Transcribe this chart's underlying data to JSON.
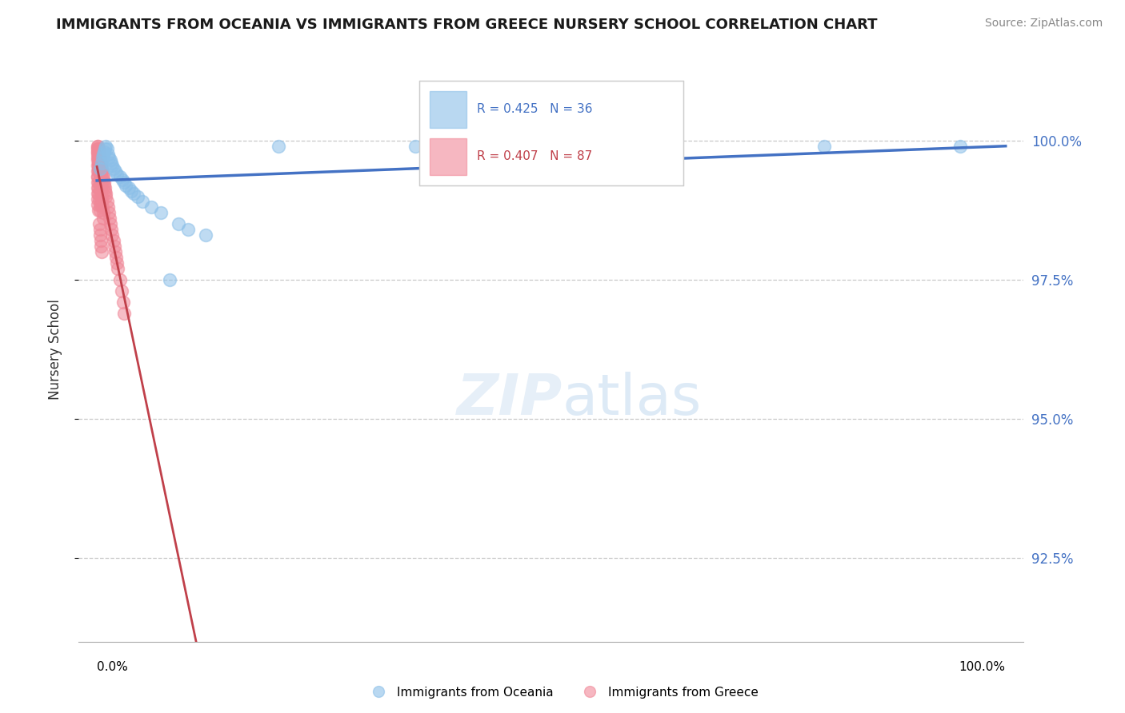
{
  "title": "IMMIGRANTS FROM OCEANIA VS IMMIGRANTS FROM GREECE NURSERY SCHOOL CORRELATION CHART",
  "source": "Source: ZipAtlas.com",
  "ylabel": "Nursery School",
  "y_ticks": [
    92.5,
    95.0,
    97.5,
    100.0
  ],
  "y_tick_labels": [
    "92.5%",
    "95.0%",
    "97.5%",
    "100.0%"
  ],
  "ylim": [
    91.0,
    101.5
  ],
  "xlim": [
    -2,
    102
  ],
  "x_tick_positions": [
    0,
    100
  ],
  "x_tick_labels": [
    "0.0%",
    "100.0%"
  ],
  "legend_r_oceania": "R = 0.425",
  "legend_n_oceania": "N = 36",
  "legend_r_greece": "R = 0.407",
  "legend_n_greece": "N = 87",
  "color_oceania": "#8BBFE8",
  "color_greece": "#F08898",
  "color_trendline_oceania": "#4472C4",
  "color_trendline_greece": "#C0404A",
  "oceania_x": [
    0.3,
    0.5,
    0.6,
    0.7,
    0.8,
    0.9,
    1.0,
    1.1,
    1.2,
    1.3,
    1.5,
    1.6,
    1.7,
    1.8,
    2.0,
    2.2,
    2.5,
    2.8,
    3.0,
    3.2,
    3.5,
    3.8,
    4.0,
    4.5,
    5.0,
    6.0,
    7.0,
    8.0,
    9.0,
    10.0,
    12.0,
    20.0,
    35.0,
    60.0,
    80.0,
    95.0
  ],
  "oceania_y": [
    99.5,
    99.6,
    99.7,
    99.75,
    99.8,
    99.85,
    99.9,
    99.85,
    99.75,
    99.7,
    99.65,
    99.6,
    99.55,
    99.5,
    99.45,
    99.4,
    99.35,
    99.3,
    99.25,
    99.2,
    99.15,
    99.1,
    99.05,
    99.0,
    98.9,
    98.8,
    98.7,
    97.5,
    98.5,
    98.4,
    98.3,
    99.9,
    99.9,
    99.9,
    99.9,
    99.9
  ],
  "greece_x": [
    0.1,
    0.15,
    0.2,
    0.25,
    0.3,
    0.35,
    0.4,
    0.45,
    0.5,
    0.55,
    0.6,
    0.65,
    0.7,
    0.75,
    0.8,
    0.85,
    0.9,
    0.95,
    1.0,
    1.1,
    1.2,
    1.3,
    1.4,
    1.5,
    1.6,
    1.7,
    1.8,
    1.9,
    2.0,
    2.1,
    2.2,
    2.3,
    2.5,
    2.7,
    2.9,
    3.0,
    0.3,
    0.35,
    0.4,
    0.45,
    0.5,
    0.55,
    0.6,
    0.65,
    0.7,
    0.25,
    0.3,
    0.35,
    0.4,
    0.45,
    0.5,
    0.3,
    0.35,
    0.4,
    0.1,
    0.15,
    0.2,
    0.25,
    0.1,
    0.15,
    0.2,
    0.15,
    0.1,
    0.05,
    0.15,
    0.1,
    0.2,
    0.25,
    0.3,
    0.35,
    0.1,
    0.05,
    0.1,
    0.15,
    0.2,
    0.05,
    0.1,
    0.05,
    0.1,
    0.15,
    0.1,
    0.05,
    0.2,
    0.05,
    0.1,
    0.1,
    0.15
  ],
  "greece_y": [
    99.9,
    99.85,
    99.8,
    99.75,
    99.7,
    99.65,
    99.6,
    99.55,
    99.5,
    99.45,
    99.4,
    99.35,
    99.3,
    99.25,
    99.2,
    99.15,
    99.1,
    99.05,
    99.0,
    98.9,
    98.8,
    98.7,
    98.6,
    98.5,
    98.4,
    98.3,
    98.2,
    98.1,
    98.0,
    97.9,
    97.8,
    97.7,
    97.5,
    97.3,
    97.1,
    96.9,
    99.4,
    99.3,
    99.2,
    99.1,
    99.0,
    98.9,
    98.8,
    98.7,
    98.6,
    98.5,
    98.4,
    98.3,
    98.2,
    98.1,
    98.0,
    99.6,
    99.5,
    99.4,
    99.8,
    99.7,
    99.6,
    99.5,
    99.85,
    99.75,
    99.65,
    99.55,
    99.45,
    99.35,
    99.25,
    99.15,
    99.05,
    98.95,
    98.85,
    98.75,
    99.9,
    99.8,
    99.7,
    99.6,
    99.5,
    99.85,
    99.75,
    99.65,
    99.55,
    99.45,
    99.35,
    99.25,
    99.15,
    99.05,
    98.95,
    98.85,
    98.75
  ]
}
